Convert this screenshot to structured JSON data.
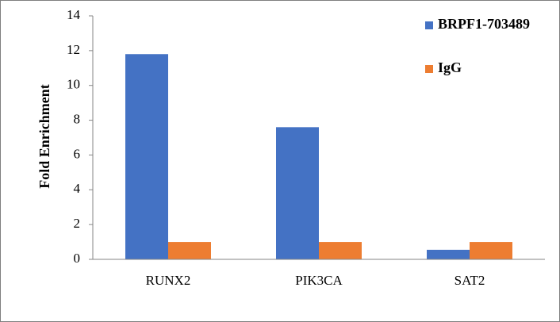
{
  "chart_data": {
    "type": "bar",
    "y_label": "Fold Enrichment",
    "categories": [
      "RUNX2",
      "PIK3CA",
      "SAT2"
    ],
    "series": [
      {
        "name": "BRPF1-703489",
        "color": "#4472c4",
        "values": [
          11.8,
          7.6,
          0.55
        ]
      },
      {
        "name": "IgG",
        "color": "#ed7d31",
        "values": [
          1.0,
          1.0,
          1.0
        ]
      }
    ],
    "ylim": [
      0,
      14
    ],
    "yticks": [
      0,
      2,
      4,
      6,
      8,
      10,
      12,
      14
    ],
    "grid": false,
    "legend": "top-right"
  }
}
